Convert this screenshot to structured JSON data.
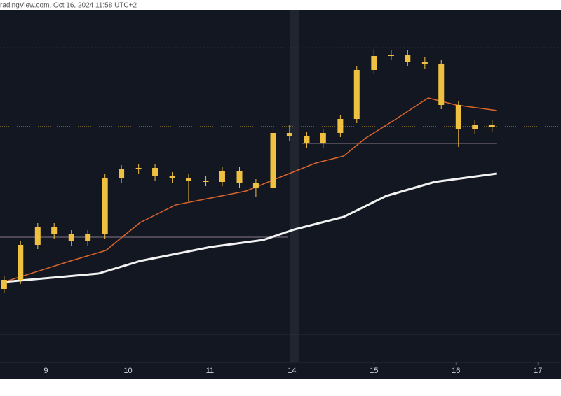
{
  "header": {
    "source": "radingView.com, Oct 16, 2024 11:58 UTC+2"
  },
  "chart_data": {
    "type": "candlestick",
    "xticks": [
      {
        "value": 0,
        "label": "9"
      },
      {
        "value": 1,
        "label": "10"
      },
      {
        "value": 2,
        "label": "11"
      },
      {
        "value": 3,
        "label": "14"
      },
      {
        "value": 4,
        "label": "15"
      },
      {
        "value": 5,
        "label": "16"
      },
      {
        "value": 6,
        "label": "17"
      }
    ],
    "xlim": [
      -0.56,
      6.28
    ],
    "ylim": [
      0,
      503
    ],
    "candles": {
      "color": "#f0c040",
      "x": [
        -0.51,
        -0.31,
        -0.1,
        0.1,
        0.31,
        0.51,
        0.72,
        0.92,
        1.13,
        1.33,
        1.54,
        1.74,
        1.95,
        2.15,
        2.36,
        2.56,
        2.77,
        2.97,
        3.18,
        3.38,
        3.59,
        3.79,
        4.0,
        4.21,
        4.41,
        4.62,
        4.82,
        5.03,
        5.23,
        5.44
      ],
      "open": [
        105,
        118,
        168,
        193,
        183,
        173,
        183,
        263,
        276,
        278,
        266,
        263,
        260,
        258,
        273,
        256,
        250,
        328,
        323,
        313,
        328,
        348,
        418,
        438,
        440,
        430,
        426,
        368,
        333,
        340
      ],
      "high": [
        124,
        174,
        199,
        199,
        189,
        189,
        269,
        282,
        284,
        284,
        272,
        269,
        266,
        279,
        279,
        262,
        336,
        340,
        329,
        334,
        354,
        424,
        448,
        446,
        446,
        436,
        432,
        374,
        346,
        346
      ],
      "low": [
        99,
        112,
        162,
        177,
        167,
        167,
        177,
        257,
        270,
        260,
        257,
        230,
        252,
        252,
        250,
        236,
        244,
        317,
        307,
        307,
        322,
        342,
        412,
        432,
        424,
        420,
        362,
        308,
        327,
        330
      ],
      "close": [
        118,
        168,
        193,
        183,
        173,
        183,
        263,
        276,
        278,
        266,
        263,
        260,
        258,
        273,
        256,
        250,
        328,
        323,
        313,
        328,
        348,
        418,
        438,
        440,
        430,
        426,
        368,
        333,
        340,
        336
      ]
    },
    "series": [
      {
        "color": "#d9652b",
        "width": 1.5,
        "x": [
          -0.51,
          0.3,
          0.73,
          1.15,
          1.58,
          2.01,
          2.44,
          2.86,
          3.29,
          3.63,
          3.89,
          4.23,
          4.66,
          5.0,
          5.5
        ],
        "values": [
          115,
          145,
          160,
          200,
          225,
          235,
          245,
          265,
          285,
          295,
          320,
          345,
          378,
          368,
          360
        ]
      },
      {
        "color": "#f2f2f2",
        "width": 3,
        "x": [
          -0.51,
          0.64,
          1.15,
          2.01,
          2.65,
          3.03,
          3.63,
          4.15,
          4.74,
          5.5
        ],
        "values": [
          115,
          127,
          145,
          165,
          175,
          190,
          208,
          238,
          258,
          270
        ]
      }
    ],
    "levels": [
      {
        "value": 450,
        "x": [
          -0.56,
          6.28
        ],
        "color": "#2a2e39",
        "dash": "2,3"
      },
      {
        "value": 337,
        "x": [
          -0.56,
          6.28
        ],
        "color": "#c9a030",
        "dash": "1,2"
      },
      {
        "value": 313,
        "x": [
          3.12,
          5.5
        ],
        "color": "#8a7a8a",
        "dash": ""
      },
      {
        "value": 179,
        "x": [
          -0.56,
          2.95
        ],
        "color": "#8a7a8a",
        "dash": ""
      },
      {
        "value": 40,
        "x": [
          -0.56,
          6.28
        ],
        "color": "#2a2e39",
        "dash": ""
      }
    ]
  }
}
